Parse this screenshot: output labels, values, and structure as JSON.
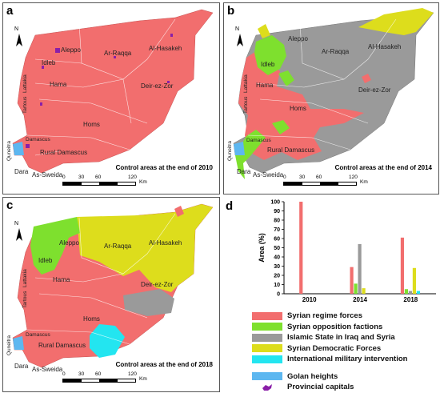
{
  "colors": {
    "regime": "#f26e6e",
    "opposition": "#7ee02e",
    "isis": "#9a9a9a",
    "sdf": "#dddd1c",
    "intl": "#23e5f0",
    "golan": "#5db7f0",
    "capital": "#8a1fa8"
  },
  "panels": {
    "a": {
      "label": "a",
      "caption": "Control areas at the end of 2010"
    },
    "b": {
      "label": "b",
      "caption": "Control areas at the end of 2014"
    },
    "c": {
      "label": "c",
      "caption": "Control areas at the end of 2018"
    },
    "d": {
      "label": "d"
    }
  },
  "north_label": "N",
  "scale": {
    "ticks": [
      "0",
      "30",
      "60",
      "120"
    ],
    "unit": "Km"
  },
  "cities": {
    "aleppo": "Aleppo",
    "idleb": "Idleb",
    "lattakia": "Lattakia",
    "hama": "Hama",
    "tartous": "Tartous",
    "homs": "Homs",
    "ar_raqqa": "Ar-Raqqa",
    "al_hasakeh": "Al-Hasakeh",
    "deir_ez_zor": "Deir-ez-Zor",
    "damascus": "Damascus",
    "rural_damascus": "Rural Damascus",
    "quneitra": "Quneitra",
    "dara": "Dara",
    "as_sweida": "As-Sweida"
  },
  "chart_data": {
    "type": "bar",
    "categories": [
      "2010",
      "2014",
      "2018"
    ],
    "ylabel": "Area (%)",
    "ylim": [
      0,
      100
    ],
    "yticks": [
      0,
      10,
      20,
      30,
      40,
      50,
      60,
      70,
      80,
      90,
      100
    ],
    "series": [
      {
        "name": "Syrian regime forces",
        "color": "#f26e6e",
        "values": [
          100,
          29,
          61
        ]
      },
      {
        "name": "Syrian opposition factions",
        "color": "#7ee02e",
        "values": [
          0,
          11,
          5
        ]
      },
      {
        "name": "Islamic State in Iraq and Syria",
        "color": "#9a9a9a",
        "values": [
          0,
          54,
          3
        ]
      },
      {
        "name": "Syrian Democratic Forces",
        "color": "#dddd1c",
        "values": [
          0,
          6,
          28
        ]
      },
      {
        "name": "International military intervention",
        "color": "#23e5f0",
        "values": [
          0,
          0,
          3
        ]
      }
    ]
  },
  "legend": [
    {
      "label": "Syrian regime forces",
      "color": "#f26e6e"
    },
    {
      "label": "Syrian opposition factions",
      "color": "#7ee02e"
    },
    {
      "label": "Islamic State in Iraq and Syria",
      "color": "#9a9a9a"
    },
    {
      "label": "Syrian Democratic Forces",
      "color": "#dddd1c"
    },
    {
      "label": "International military intervention",
      "color": "#23e5f0"
    }
  ],
  "legend_extra": {
    "golan": "Golan heights",
    "capitals": "Provincial capitals"
  }
}
